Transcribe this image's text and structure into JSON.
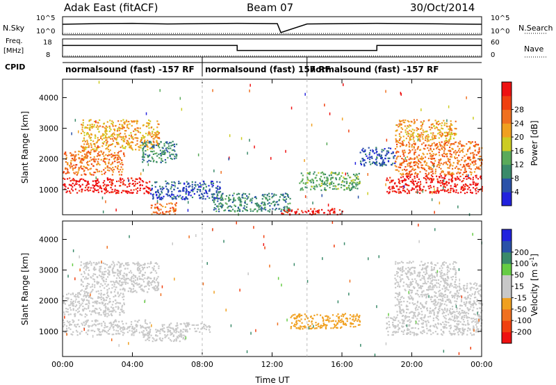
{
  "header": {
    "station": "Adak East (fitACF)",
    "beam": "Beam 07",
    "date": "30/Oct/2014"
  },
  "side_labels": {
    "nsky": "N.Sky",
    "nsearch": "N.Search",
    "freq": "Freq.",
    "freq_unit": "[MHz]",
    "nave": "Nave",
    "cpid": "CPID",
    "nsky_ticks": [
      "10^5",
      "10^0"
    ],
    "nsearch_ticks": [
      "10^5",
      "10^0"
    ],
    "freq_ticks": [
      "18",
      "8"
    ],
    "nave_ticks": [
      "60",
      "0"
    ]
  },
  "cpid_segments": [
    {
      "label": "normalsound (fast) -157 RF",
      "start_hour": 0
    },
    {
      "label": "normalsound (fast) 157 RF",
      "start_hour": 8
    },
    {
      "label": "normalsound (fast) -157 RF",
      "start_hour": 14
    }
  ],
  "colors": {
    "power": [
      "#2222dd",
      "#2a52a8",
      "#3a8a6a",
      "#5aaa5a",
      "#cccc22",
      "#f0a020",
      "#f07020",
      "#f04010",
      "#ee1111"
    ],
    "velocity": [
      "#ee1111",
      "#f04010",
      "#f07020",
      "#f0a020",
      "#c8c8c8",
      "#c8c8c8",
      "#66cc44",
      "#3a8a6a",
      "#2a52a8",
      "#2222dd"
    ]
  },
  "chart_data": [
    {
      "type": "line",
      "title": "N.Sky / N.Search",
      "x_range_hours": [
        0,
        24
      ],
      "series": [
        {
          "name": "N.Sky",
          "x": [
            0,
            2,
            4,
            6,
            8,
            10,
            12.3,
            12.5,
            14,
            16,
            18,
            20,
            22,
            24
          ],
          "y_log": [
            3.2,
            3.4,
            3.5,
            3.3,
            3.4,
            3.5,
            3.4,
            0.5,
            3.3,
            3.4,
            3.5,
            3.4,
            3.3,
            3.2
          ]
        },
        {
          "name": "N.Search",
          "x": [
            0,
            12,
            24
          ],
          "y_log": [
            0.2,
            0.2,
            0.2
          ]
        }
      ]
    },
    {
      "type": "line",
      "title": "Freq. / Nave",
      "x_range_hours": [
        0,
        24
      ],
      "series": [
        {
          "name": "Freq. [MHz]",
          "x": [
            0,
            10,
            10,
            18,
            18,
            24
          ],
          "y": [
            14.5,
            14.5,
            11.5,
            11.5,
            14.5,
            14.5
          ]
        },
        {
          "name": "Nave",
          "x": [
            0,
            24
          ],
          "y": [
            1,
            1
          ]
        }
      ]
    },
    {
      "type": "heatmap",
      "title": "Power",
      "xlabel": "",
      "ylabel": "Slant Range [km]",
      "x_range_hours": [
        0,
        24
      ],
      "ylim": [
        180,
        4600
      ],
      "y_ticks": [
        1000,
        2000,
        3000,
        4000
      ],
      "colorbar_label": "Power [dB]",
      "colorbar_ticks": [
        4,
        8,
        12,
        16,
        20,
        24,
        28
      ],
      "blobs": [
        {
          "t0": 0.0,
          "t1": 5.0,
          "r0": 900,
          "r1": 1400,
          "level": 8
        },
        {
          "t0": 0.0,
          "t1": 3.5,
          "r0": 1500,
          "r1": 2300,
          "level": 6
        },
        {
          "t0": 1.0,
          "t1": 5.5,
          "r0": 2300,
          "r1": 3300,
          "level": 5
        },
        {
          "t0": 4.5,
          "t1": 6.5,
          "r0": 1900,
          "r1": 2600,
          "level": 2
        },
        {
          "t0": 5.0,
          "t1": 9.0,
          "r0": 700,
          "r1": 1300,
          "level": 1
        },
        {
          "t0": 5.0,
          "t1": 6.5,
          "r0": 200,
          "r1": 600,
          "level": 6
        },
        {
          "t0": 8.5,
          "t1": 13.0,
          "r0": 300,
          "r1": 900,
          "level": 2
        },
        {
          "t0": 12.5,
          "t1": 16.0,
          "r0": 200,
          "r1": 400,
          "level": 8
        },
        {
          "t0": 13.5,
          "t1": 17.0,
          "r0": 1000,
          "r1": 1600,
          "level": 3
        },
        {
          "t0": 17.0,
          "t1": 19.0,
          "r0": 1800,
          "r1": 2400,
          "level": 1
        },
        {
          "t0": 18.5,
          "t1": 24.0,
          "r0": 900,
          "r1": 1500,
          "level": 8
        },
        {
          "t0": 19.0,
          "t1": 24.0,
          "r0": 1500,
          "r1": 2600,
          "level": 6
        },
        {
          "t0": 19.0,
          "t1": 22.5,
          "r0": 2600,
          "r1": 3300,
          "level": 5
        }
      ]
    },
    {
      "type": "heatmap",
      "title": "Velocity",
      "xlabel": "Time UT",
      "ylabel": "Slant Range [km]",
      "x_range_hours": [
        0,
        24
      ],
      "ylim": [
        180,
        4600
      ],
      "y_ticks": [
        1000,
        2000,
        3000,
        4000
      ],
      "x_ticks": [
        "00:00",
        "04:00",
        "08:00",
        "12:00",
        "16:00",
        "20:00",
        "00:00"
      ],
      "colorbar_label": "Velocity [m s^-1]",
      "colorbar_ticks": [
        -200,
        -100,
        -50,
        -15,
        15,
        50,
        100,
        200
      ],
      "blobs": [
        {
          "t0": 0.0,
          "t1": 5.0,
          "r0": 900,
          "r1": 1400,
          "vel": 0
        },
        {
          "t0": 0.0,
          "t1": 3.5,
          "r0": 1500,
          "r1": 2300,
          "vel": 0
        },
        {
          "t0": 1.0,
          "t1": 5.5,
          "r0": 2300,
          "r1": 3300,
          "vel": 0
        },
        {
          "t0": 4.5,
          "t1": 7.0,
          "r0": 700,
          "r1": 1100,
          "vel": 40
        },
        {
          "t0": 5.5,
          "t1": 8.5,
          "r0": 1000,
          "r1": 1300,
          "vel": 40
        },
        {
          "t0": 13.0,
          "t1": 17.0,
          "r0": 1100,
          "r1": 1600,
          "vel": -40
        },
        {
          "t0": 18.5,
          "t1": 24.0,
          "r0": 900,
          "r1": 1500,
          "vel": 0
        },
        {
          "t0": 19.0,
          "t1": 24.0,
          "r0": 1500,
          "r1": 2600,
          "vel": 0
        },
        {
          "t0": 19.0,
          "t1": 22.5,
          "r0": 2600,
          "r1": 3300,
          "vel": 30
        }
      ]
    }
  ],
  "axis": {
    "time_label": "Time UT",
    "range_label": "Slant Range [km]",
    "power_label": "Power [dB]",
    "velocity_label": "Velocity [m s",
    "velocity_sup": "-1",
    "velocity_close": "]"
  }
}
